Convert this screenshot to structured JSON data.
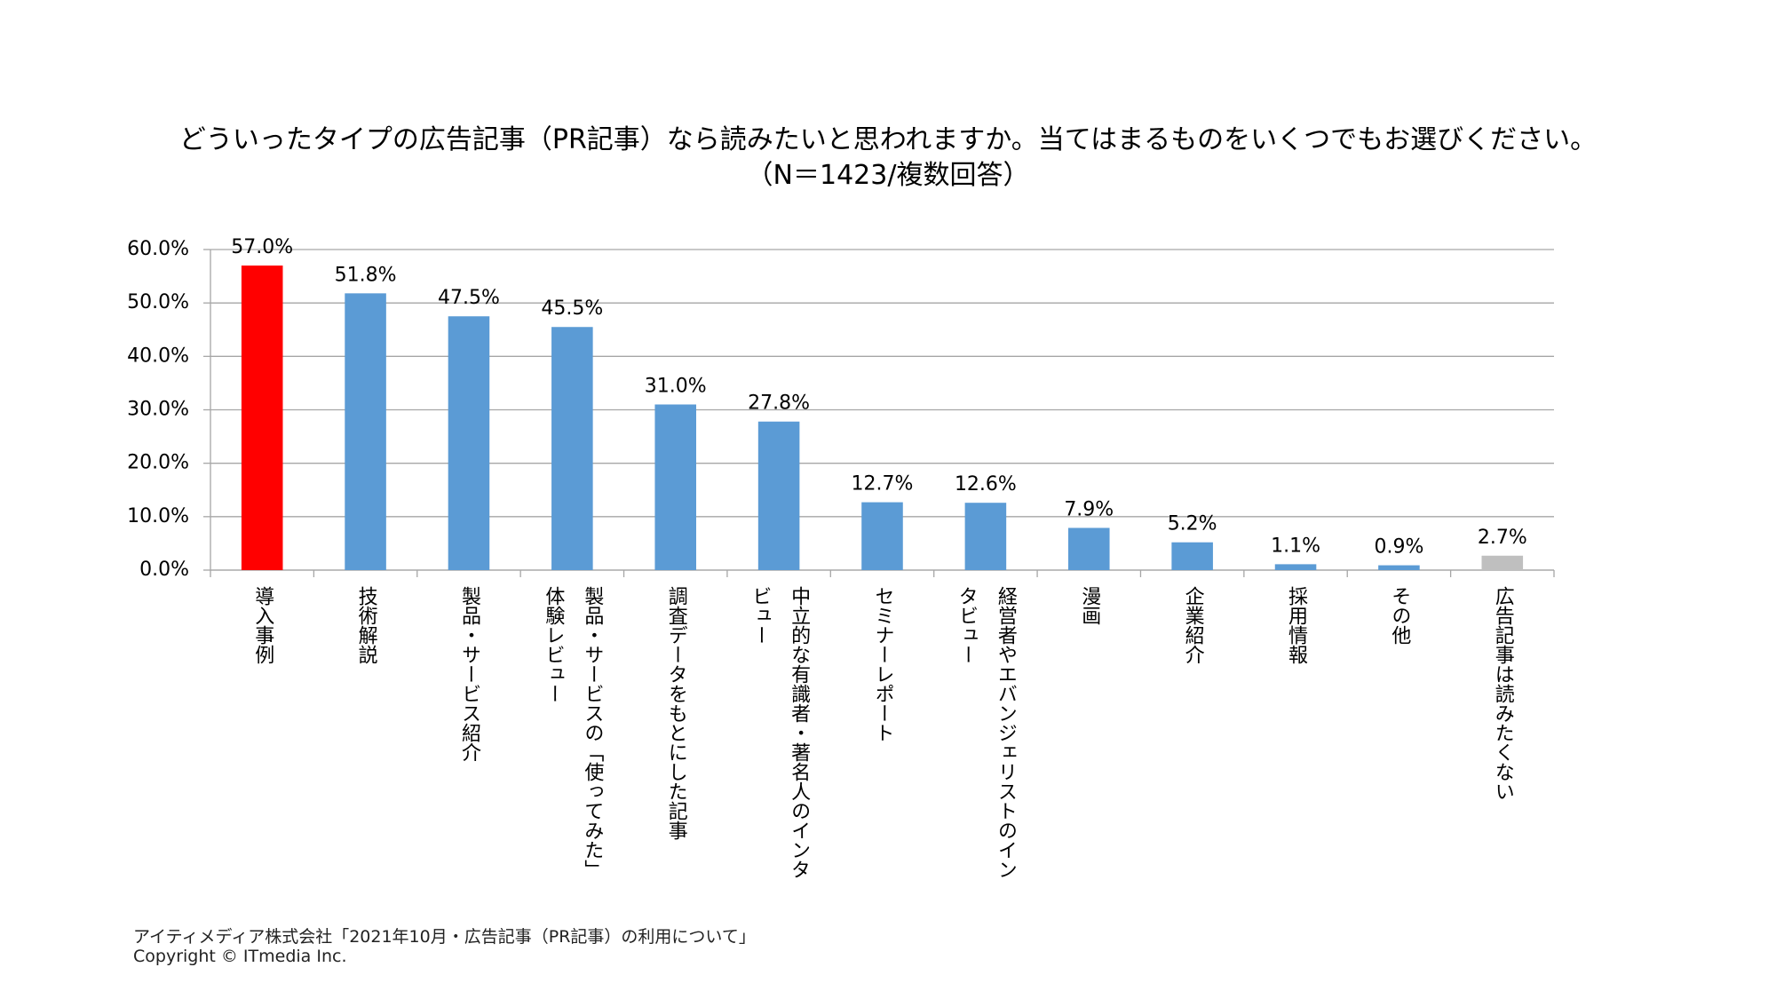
{
  "chart_data": {
    "type": "bar",
    "title": "どういったタイプの広告記事（PR記事）なら読みたいと思われますか。当てはまるものをいくつでもお選びください。",
    "subtitle": "（N＝1423/複数回答）",
    "categories": [
      "導入事例",
      "技術解説",
      "製品・サービス紹介",
      "製品・サービスの「使ってみた」体験レビュー",
      "調査データをもとにした記事",
      "中立的な有識者・著名人のインタビュー",
      "セミナーレポート",
      "経営者やエバンジェリストのインタビュー",
      "漫画",
      "企業紹介",
      "採用情報",
      "その他",
      "広告記事は読みたくない"
    ],
    "values": [
      57.0,
      51.8,
      47.5,
      45.5,
      31.0,
      27.8,
      12.7,
      12.6,
      7.9,
      5.2,
      1.1,
      0.9,
      2.7
    ],
    "value_labels": [
      "57.0%",
      "51.8%",
      "47.5%",
      "45.5%",
      "31.0%",
      "27.8%",
      "12.7%",
      "12.6%",
      "7.9%",
      "5.2%",
      "1.1%",
      "0.9%",
      "2.7%"
    ],
    "colors": [
      "#ff0000",
      "#5b9bd5",
      "#5b9bd5",
      "#5b9bd5",
      "#5b9bd5",
      "#5b9bd5",
      "#5b9bd5",
      "#5b9bd5",
      "#5b9bd5",
      "#5b9bd5",
      "#5b9bd5",
      "#5b9bd5",
      "#bfbfbf"
    ],
    "ylim": [
      0,
      60
    ],
    "yticks": [
      {
        "value": 0,
        "label": "0.0%"
      },
      {
        "value": 10,
        "label": "10.0%"
      },
      {
        "value": 20,
        "label": "20.0%"
      },
      {
        "value": 30,
        "label": "30.0%"
      },
      {
        "value": 40,
        "label": "40.0%"
      },
      {
        "value": 50,
        "label": "50.0%"
      },
      {
        "value": 60,
        "label": "60.0%"
      }
    ],
    "grid": true,
    "source": "アイティメディア株式会社「2021年10月・広告記事（PR記事）の利用について」",
    "copyright": "Copyright © ITmedia Inc."
  }
}
